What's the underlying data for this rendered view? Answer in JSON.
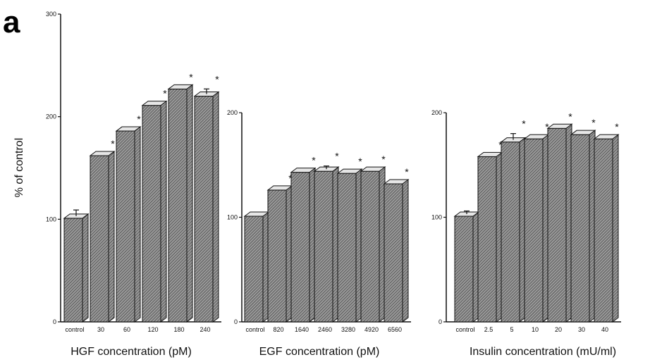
{
  "figure": {
    "panel_letter": "a",
    "ylabel": "% of control",
    "colors": {
      "bar_face": "#9a9a9a",
      "bar_side": "#7a7a7a",
      "bar_top": "#e6e6e6",
      "hatch": "#3a3a3a",
      "ink": "#111111"
    }
  },
  "chart_data": [
    {
      "type": "bar",
      "xlabel": "HGF concentration (pM)",
      "ylabel": "% of control",
      "categories": [
        "control",
        "30",
        "60",
        "120",
        "180",
        "240"
      ],
      "values": [
        101,
        162,
        186,
        211,
        227,
        220
      ],
      "errors": [
        6,
        0,
        0,
        0,
        0,
        5
      ],
      "significant": [
        false,
        true,
        true,
        true,
        true,
        true
      ],
      "marker": "*",
      "ylim": [
        0,
        300
      ],
      "yticks": [
        "0",
        "100",
        "200",
        "300"
      ],
      "grid": false
    },
    {
      "type": "bar",
      "xlabel": "EGF concentration (pM)",
      "ylabel": "",
      "categories": [
        "control",
        "820",
        "1640",
        "2460",
        "3280",
        "4920",
        "6560"
      ],
      "values": [
        101,
        126,
        143,
        144,
        142,
        144,
        132
      ],
      "errors": [
        0,
        0,
        0,
        3,
        0,
        0,
        0
      ],
      "significant": [
        false,
        true,
        true,
        true,
        true,
        true,
        true
      ],
      "marker": "*",
      "ylim": [
        0,
        200
      ],
      "yticks": [
        "0",
        "100",
        "200"
      ],
      "grid": false
    },
    {
      "type": "bar",
      "xlabel": "Insulin concentration (mU/ml)",
      "ylabel": "",
      "categories": [
        "control",
        "2.5",
        "5",
        "10",
        "20",
        "30",
        "40"
      ],
      "values": [
        101,
        158,
        172,
        175,
        185,
        179,
        175
      ],
      "errors": [
        3,
        0,
        6,
        0,
        0,
        0,
        0
      ],
      "significant": [
        false,
        true,
        true,
        true,
        true,
        true,
        true
      ],
      "marker": "*",
      "ylim": [
        0,
        200
      ],
      "yticks": [
        "0",
        "100",
        "200"
      ],
      "grid": false
    }
  ]
}
